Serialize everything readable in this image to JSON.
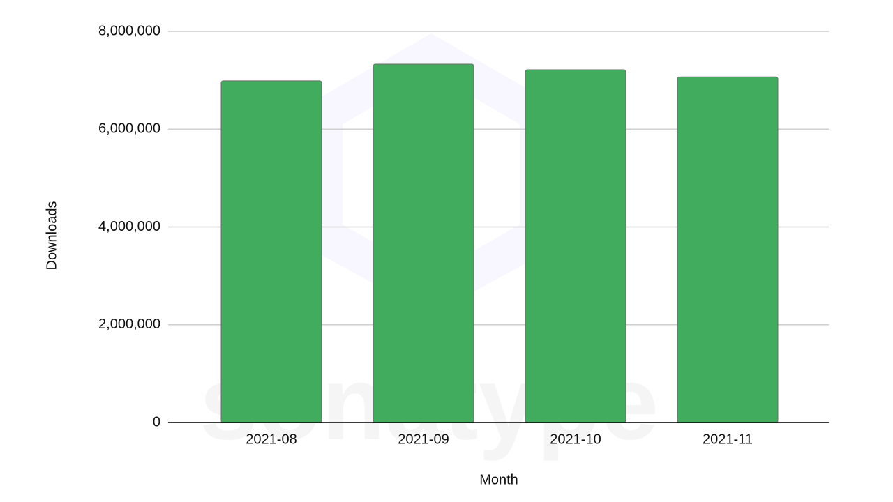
{
  "chart_data": {
    "type": "bar",
    "watermark": "sonatype",
    "x_label": "Month",
    "y_label": "Downloads",
    "categories": [
      "2021-08",
      "2021-09",
      "2021-10",
      "2021-11"
    ],
    "values": [
      6990000,
      7330000,
      7215000,
      7070000
    ],
    "color": "#41ac5e",
    "ylim": [
      0,
      8000000
    ],
    "yticks": [
      0,
      {
        "value": 2000000,
        "label": "2,000,000"
      },
      {
        "value": 4000000,
        "label": "4,000,000"
      },
      {
        "value": 6000000,
        "label": "6,000,000"
      },
      {
        "value": 8000000,
        "label": "8,000,000"
      }
    ],
    "grid": true
  }
}
